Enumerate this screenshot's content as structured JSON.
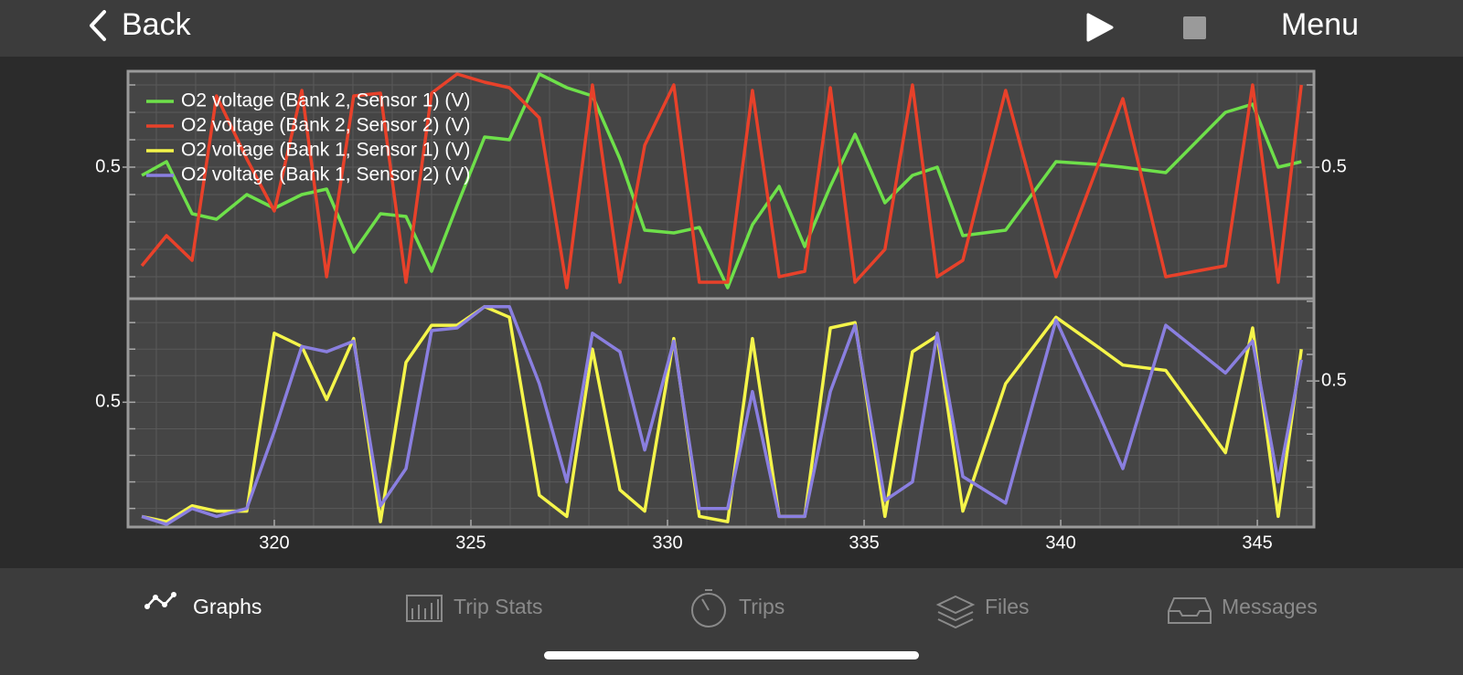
{
  "nav": {
    "back": "Back",
    "menu": "Menu"
  },
  "chart_data": [
    {
      "type": "line",
      "x": [
        316.63,
        317.26,
        317.91,
        318.53,
        319.3,
        320,
        320.7,
        321.33,
        322.02,
        322.7,
        323.35,
        324,
        324.65,
        325.35,
        325.98,
        326.74,
        327.44,
        328.09,
        328.79,
        329.42,
        330.16,
        330.81,
        331.53,
        332.16,
        332.84,
        333.49,
        334.14,
        334.77,
        335.53,
        336.23,
        336.86,
        337.51,
        338.6,
        339.88,
        340.93,
        341.58,
        342.67,
        344.19,
        344.88,
        345.53,
        346.12
      ],
      "xlim": [
        316.28,
        346.44
      ],
      "minor_xticks": [
        317,
        318,
        319,
        320,
        321,
        322,
        323,
        324,
        325,
        326,
        327,
        328,
        329,
        330,
        331,
        332,
        333,
        334,
        335,
        336,
        337,
        338,
        339,
        340,
        341,
        342,
        343,
        344,
        345,
        346
      ],
      "ylim": [
        0.02,
        0.85
      ],
      "yticks": [
        0.5
      ],
      "y2lim": [
        0.02,
        0.85
      ],
      "y2ticks": [
        0.5
      ],
      "minor_yticks": [
        0.1,
        0.2,
        0.3,
        0.4,
        0.5,
        0.6,
        0.7,
        0.8
      ],
      "grid": true,
      "series": [
        {
          "name": "O2 voltage (Bank 2, Sensor 1) (V)",
          "color": "#6ee04a",
          "values": [
            0.47,
            0.52,
            0.33,
            0.31,
            0.4,
            0.35,
            0.4,
            0.42,
            0.19,
            0.33,
            0.32,
            0.12,
            0.36,
            0.61,
            0.6,
            0.84,
            0.79,
            0.76,
            0.53,
            0.27,
            0.26,
            0.28,
            0.06,
            0.29,
            0.43,
            0.21,
            0.43,
            0.62,
            0.37,
            0.47,
            0.5,
            0.25,
            0.27,
            0.52,
            0.51,
            0.5,
            0.48,
            0.7,
            0.73,
            0.5,
            0.52
          ]
        },
        {
          "name": "O2 voltage (Bank 2, Sensor 2) (V)",
          "color": "#e8412a",
          "values": [
            0.14,
            0.25,
            0.16,
            0.76,
            0.53,
            0.34,
            0.78,
            0.1,
            0.76,
            0.77,
            0.08,
            0.77,
            0.84,
            0.81,
            0.79,
            0.68,
            0.06,
            0.8,
            0.08,
            0.58,
            0.8,
            0.08,
            0.08,
            0.78,
            0.1,
            0.12,
            0.79,
            0.08,
            0.2,
            0.8,
            0.1,
            0.16,
            0.78,
            0.1,
            0.5,
            0.75,
            0.1,
            0.14,
            0.8,
            0.08,
            0.8
          ]
        }
      ]
    },
    {
      "type": "line",
      "x": [
        316.63,
        317.26,
        317.91,
        318.53,
        319.3,
        320,
        320.7,
        321.33,
        322.02,
        322.7,
        323.35,
        324,
        324.65,
        325.35,
        325.98,
        326.74,
        327.44,
        328.09,
        328.79,
        329.42,
        330.16,
        330.81,
        331.53,
        332.16,
        332.84,
        333.49,
        334.14,
        334.77,
        335.53,
        336.23,
        336.86,
        337.51,
        338.6,
        339.88,
        340.93,
        341.58,
        342.67,
        344.19,
        344.88,
        345.53,
        346.12
      ],
      "xlim": [
        316.28,
        346.44
      ],
      "xticks": [
        320,
        325,
        330,
        335,
        340,
        345
      ],
      "minor_xticks": [
        317,
        318,
        319,
        320,
        321,
        322,
        323,
        324,
        325,
        326,
        327,
        328,
        329,
        330,
        331,
        332,
        333,
        334,
        335,
        336,
        337,
        338,
        339,
        340,
        341,
        342,
        343,
        344,
        345,
        346
      ],
      "ylim": [
        0.03,
        0.89
      ],
      "yticks": [
        0.5
      ],
      "y2lim": [
        -0.05,
        0.81
      ],
      "y2ticks": [
        0.5
      ],
      "minor_yticks": [
        0.1,
        0.2,
        0.3,
        0.4,
        0.5,
        0.6,
        0.7,
        0.8
      ],
      "grid": true,
      "series": [
        {
          "name": "O2 voltage (Bank 1, Sensor 1) (V)",
          "color": "#f5f54a",
          "values": [
            0.07,
            0.05,
            0.11,
            0.09,
            0.09,
            0.76,
            0.71,
            0.51,
            0.74,
            0.05,
            0.65,
            0.79,
            0.79,
            0.86,
            0.82,
            0.15,
            0.07,
            0.7,
            0.17,
            0.09,
            0.74,
            0.07,
            0.05,
            0.74,
            0.07,
            0.07,
            0.78,
            0.8,
            0.07,
            0.69,
            0.75,
            0.09,
            0.57,
            0.82,
            0.71,
            0.64,
            0.62,
            0.31,
            0.78,
            0.07,
            0.7
          ]
        },
        {
          "name": "O2 voltage (Bank 1, Sensor 2) (V)",
          "color": "#8a7fe0",
          "values": [
            0.07,
            0.04,
            0.1,
            0.07,
            0.1,
            0.39,
            0.71,
            0.69,
            0.73,
            0.11,
            0.25,
            0.77,
            0.78,
            0.86,
            0.86,
            0.57,
            0.2,
            0.76,
            0.69,
            0.32,
            0.73,
            0.1,
            0.1,
            0.54,
            0.07,
            0.07,
            0.54,
            0.79,
            0.13,
            0.2,
            0.76,
            0.22,
            0.12,
            0.81,
            0.47,
            0.25,
            0.79,
            0.61,
            0.73,
            0.2,
            0.66
          ]
        }
      ]
    }
  ],
  "tabs": [
    "Graphs",
    "Trip Stats",
    "Trips",
    "Files",
    "Messages"
  ]
}
